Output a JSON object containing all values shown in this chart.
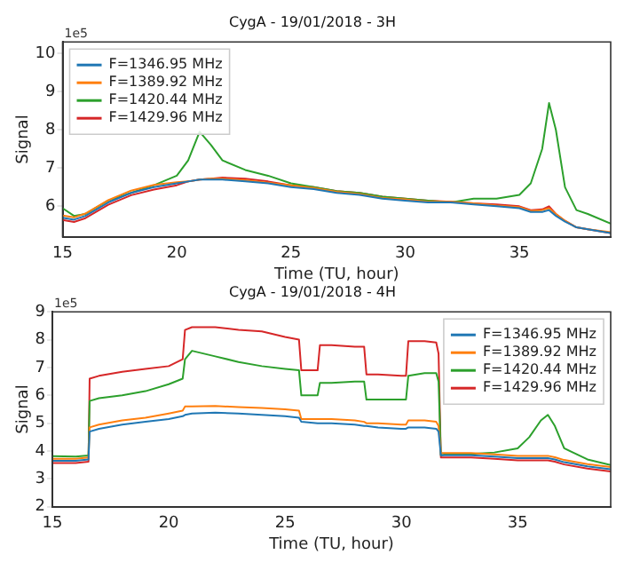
{
  "chart_data": [
    {
      "type": "line",
      "title": "CygA - 19/01/2018 - 3H",
      "xlabel": "Time (TU, hour)",
      "ylabel": "Signal",
      "annotations": [
        "1e5"
      ],
      "xlim": [
        15,
        39
      ],
      "xticks": [
        15,
        20,
        25,
        30,
        35
      ],
      "ylim": [
        5.2,
        10.3
      ],
      "yticks": [
        6,
        7,
        8,
        9,
        10
      ],
      "legend": "top left",
      "grid": false,
      "marker": "none",
      "line_style": "solid",
      "x": [
        15,
        15.5,
        16,
        17,
        18,
        19,
        20,
        20.5,
        21,
        21.5,
        22,
        23,
        24,
        25,
        26,
        27,
        28,
        29,
        30,
        31,
        32,
        33,
        34,
        35,
        35.5,
        36,
        36.3,
        36.6,
        37,
        37.5,
        38,
        39
      ],
      "series": [
        {
          "name": "F=1346.95 MHz",
          "color": "#1f77b4",
          "values": [
            5.7,
            5.65,
            5.75,
            6.1,
            6.35,
            6.5,
            6.6,
            6.65,
            6.7,
            6.7,
            6.7,
            6.65,
            6.6,
            6.5,
            6.45,
            6.35,
            6.3,
            6.2,
            6.15,
            6.1,
            6.1,
            6.05,
            6.0,
            5.95,
            5.85,
            5.85,
            5.9,
            5.75,
            5.6,
            5.45,
            5.4,
            5.3
          ]
        },
        {
          "name": "F=1389.92 MHz",
          "color": "#ff7f0e",
          "values": [
            5.76,
            5.71,
            5.81,
            6.16,
            6.41,
            6.56,
            6.63,
            6.65,
            6.7,
            6.72,
            6.72,
            6.68,
            6.62,
            6.55,
            6.48,
            6.38,
            6.32,
            6.22,
            6.18,
            6.12,
            6.12,
            6.08,
            6.02,
            5.98,
            5.88,
            5.9,
            5.95,
            5.8,
            5.62,
            5.45,
            5.4,
            5.32
          ]
        },
        {
          "name": "F=1420.44 MHz",
          "color": "#2ca02c",
          "values": [
            5.95,
            5.75,
            5.8,
            6.15,
            6.35,
            6.55,
            6.8,
            7.2,
            7.95,
            7.6,
            7.2,
            6.95,
            6.8,
            6.6,
            6.5,
            6.4,
            6.35,
            6.25,
            6.2,
            6.15,
            6.1,
            6.2,
            6.2,
            6.3,
            6.6,
            7.5,
            8.7,
            8.0,
            6.5,
            5.9,
            5.8,
            5.55
          ]
        },
        {
          "name": "F=1429.96 MHz",
          "color": "#d62728",
          "values": [
            5.64,
            5.59,
            5.69,
            6.04,
            6.29,
            6.44,
            6.55,
            6.65,
            6.7,
            6.72,
            6.75,
            6.72,
            6.65,
            6.55,
            6.5,
            6.4,
            6.35,
            6.25,
            6.2,
            6.15,
            6.12,
            6.08,
            6.05,
            6.0,
            5.9,
            5.92,
            6.0,
            5.8,
            5.62,
            5.45,
            5.4,
            5.3
          ]
        }
      ]
    },
    {
      "type": "line",
      "title": "CygA - 19/01/2018 - 4H",
      "xlabel": "Time (TU, hour)",
      "ylabel": "Signal",
      "annotations": [
        "1e5"
      ],
      "xlim": [
        15,
        39
      ],
      "xticks": [
        15,
        20,
        25,
        30,
        35
      ],
      "ylim": [
        2,
        9
      ],
      "yticks": [
        2,
        3,
        4,
        5,
        6,
        7,
        8,
        9
      ],
      "legend": "top right",
      "grid": false,
      "marker": "none",
      "line_style": "solid",
      "x": [
        15,
        16,
        16.55,
        16.6,
        17,
        18,
        19,
        20,
        20.6,
        20.7,
        21,
        22,
        23,
        24,
        25,
        25.6,
        25.7,
        26.4,
        26.5,
        27,
        28,
        28.4,
        28.5,
        29,
        30,
        30.2,
        30.3,
        31,
        31.5,
        31.6,
        31.7,
        32,
        33,
        34,
        35,
        35.5,
        36,
        36.3,
        36.6,
        37,
        38,
        39
      ],
      "series": [
        {
          "name": "F=1346.95 MHz",
          "color": "#1f77b4",
          "values": [
            3.65,
            3.65,
            3.7,
            4.7,
            4.8,
            4.95,
            5.05,
            5.15,
            5.25,
            5.3,
            5.35,
            5.38,
            5.35,
            5.3,
            5.25,
            5.2,
            5.05,
            5.0,
            5.0,
            5.0,
            4.95,
            4.9,
            4.9,
            4.85,
            4.8,
            4.8,
            4.85,
            4.85,
            4.8,
            4.7,
            3.85,
            3.85,
            3.85,
            3.8,
            3.75,
            3.75,
            3.75,
            3.75,
            3.7,
            3.6,
            3.45,
            3.35
          ]
        },
        {
          "name": "F=1389.92 MHz",
          "color": "#ff7f0e",
          "values": [
            3.72,
            3.72,
            3.77,
            4.85,
            4.95,
            5.1,
            5.2,
            5.35,
            5.45,
            5.6,
            5.6,
            5.62,
            5.58,
            5.55,
            5.5,
            5.45,
            5.15,
            5.15,
            5.15,
            5.15,
            5.1,
            5.05,
            5.0,
            5.0,
            4.95,
            4.95,
            5.1,
            5.1,
            5.05,
            4.9,
            3.93,
            3.93,
            3.93,
            3.88,
            3.83,
            3.83,
            3.83,
            3.83,
            3.78,
            3.68,
            3.53,
            3.43
          ]
        },
        {
          "name": "F=1420.44 MHz",
          "color": "#2ca02c",
          "values": [
            3.82,
            3.8,
            3.84,
            5.8,
            5.9,
            6.0,
            6.15,
            6.4,
            6.6,
            7.3,
            7.6,
            7.4,
            7.2,
            7.05,
            6.95,
            6.9,
            6.0,
            6.0,
            6.45,
            6.45,
            6.5,
            6.5,
            5.85,
            5.85,
            5.85,
            5.85,
            6.7,
            6.8,
            6.8,
            6.5,
            3.85,
            3.9,
            3.9,
            3.95,
            4.1,
            4.5,
            5.1,
            5.3,
            4.9,
            4.1,
            3.7,
            3.5
          ]
        },
        {
          "name": "F=1429.96 MHz",
          "color": "#d62728",
          "values": [
            3.57,
            3.57,
            3.62,
            6.6,
            6.7,
            6.85,
            6.95,
            7.05,
            7.3,
            8.35,
            8.45,
            8.45,
            8.35,
            8.3,
            8.1,
            8.0,
            6.9,
            6.9,
            7.8,
            7.8,
            7.75,
            7.75,
            6.75,
            6.75,
            6.7,
            6.7,
            7.95,
            7.95,
            7.9,
            7.5,
            3.77,
            3.77,
            3.77,
            3.72,
            3.67,
            3.67,
            3.67,
            3.67,
            3.62,
            3.52,
            3.37,
            3.27
          ]
        }
      ]
    }
  ]
}
